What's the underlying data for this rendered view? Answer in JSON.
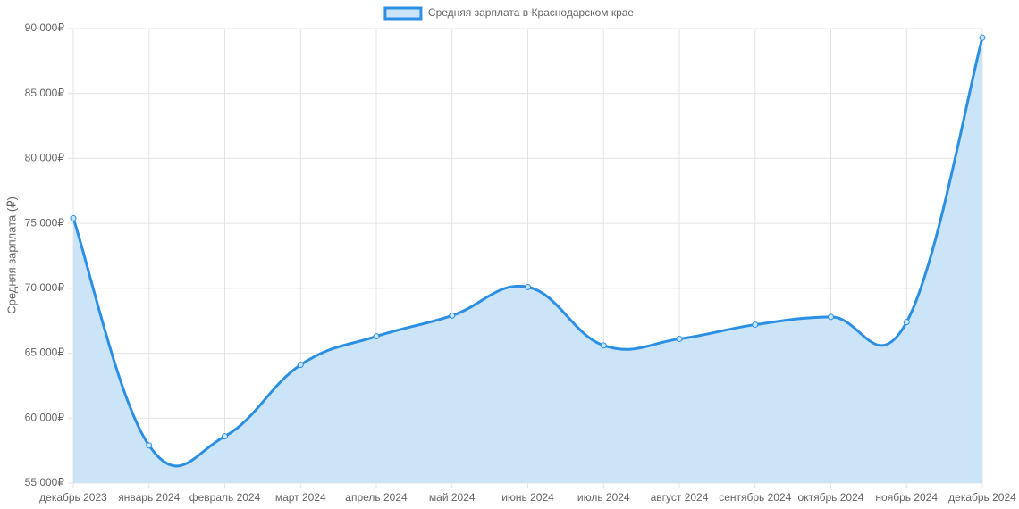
{
  "chart_data": {
    "type": "line",
    "legend_position": "top",
    "y_label": "Средняя зарплата (₽)",
    "categories": [
      "декабрь 2023",
      "январь 2024",
      "февраль 2024",
      "март 2024",
      "апрель 2024",
      "май 2024",
      "июнь 2024",
      "июль 2024",
      "август 2024",
      "сентябрь 2024",
      "октябрь 2024",
      "ноябрь 2024",
      "декабрь 2024"
    ],
    "series": [
      {
        "name": "Средняя зарплата в Краснодарском крае",
        "color": "#2b8fe3",
        "fill_color": "#cce4f8",
        "values": [
          75400,
          57900,
          58600,
          64100,
          66300,
          67900,
          70100,
          65600,
          66100,
          67200,
          67800,
          67400,
          89300
        ]
      }
    ],
    "ylim": [
      55000,
      90000
    ],
    "yticks": [
      {
        "value": 55000,
        "label": "55 000₽"
      },
      {
        "value": 60000,
        "label": "60 000₽"
      },
      {
        "value": 65000,
        "label": "65 000₽"
      },
      {
        "value": 70000,
        "label": "70 000₽"
      },
      {
        "value": 75000,
        "label": "75 000₽"
      },
      {
        "value": 80000,
        "label": "80 000₽"
      },
      {
        "value": 85000,
        "label": "85 000₽"
      },
      {
        "value": 90000,
        "label": "90 000₽"
      }
    ],
    "grid": true
  }
}
